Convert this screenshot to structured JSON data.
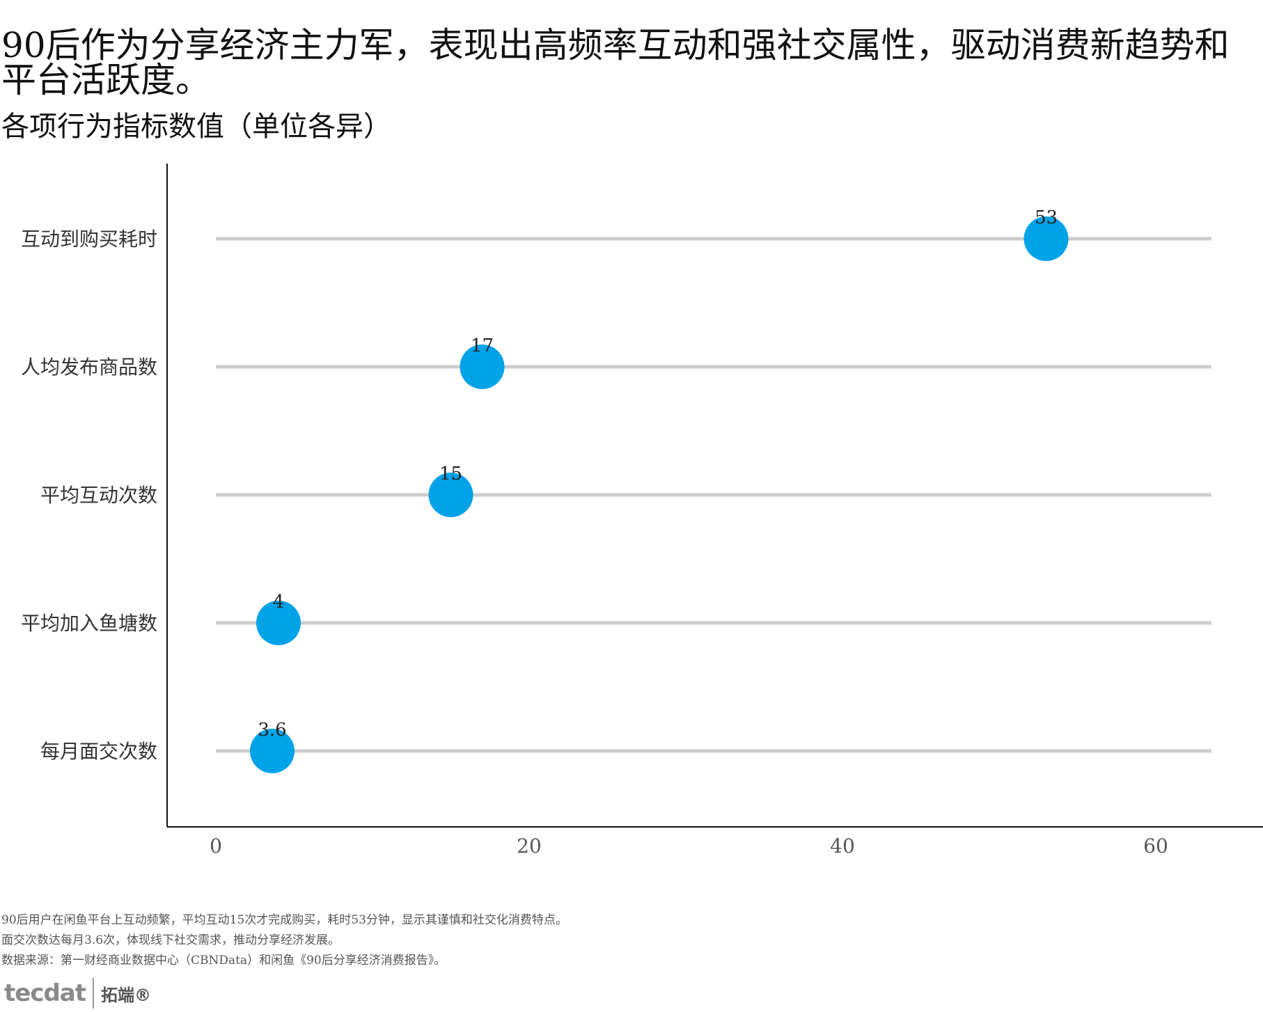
{
  "title": "90后作为分享经济主力军，表现出高频率互动和强社交属性，驱动消费新趋势和平台活跃度。",
  "subtitle": "各项行为指标数值（单位各异）",
  "chart_data": {
    "type": "lollipop",
    "categories": [
      "互动到购买耗时",
      "人均发布商品数",
      "平均互动次数",
      "平均加入鱼塘数",
      "每月面交次数"
    ],
    "values": [
      53,
      17,
      15,
      4,
      3.6
    ],
    "value_labels": [
      "53",
      "17",
      "15",
      "4",
      "3.6"
    ],
    "xlim": [
      0,
      64
    ],
    "xticks": [
      0,
      20,
      40,
      60
    ],
    "xtick_labels": [
      "0",
      "20",
      "40",
      "60"
    ],
    "grid": false,
    "colors": {
      "dot": "#00a2e8",
      "stem": "#cccccc",
      "axis": "#111111"
    }
  },
  "footnotes": [
    "90后用户在闲鱼平台上互动频繁，平均互动15次才完成购买，耗时53分钟，显示其谨慎和社交化消费特点。",
    "面交次数达每月3.6次，体现线下社交需求，推动分享经济发展。",
    "数据来源：第一财经商业数据中心（CBNData）和闲鱼《90后分享经济消费报告》。"
  ],
  "logo": {
    "text": "tecdat",
    "cn": "拓端®"
  }
}
